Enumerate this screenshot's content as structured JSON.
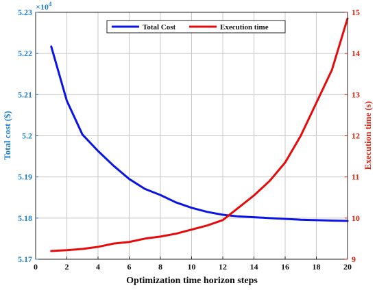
{
  "chart_data": {
    "type": "line",
    "xlabel": "Optimization time horizon steps",
    "ylabel_left": "Total cost ($)",
    "ylabel_right": "Execution time (s)",
    "xlim": [
      0,
      20
    ],
    "ylim_left": [
      5.17,
      5.23
    ],
    "ylim_right": [
      9,
      15
    ],
    "left_exponent": "×10",
    "left_exponent_power": "4",
    "x_ticks": [
      0,
      2,
      4,
      6,
      8,
      10,
      12,
      14,
      16,
      18,
      20
    ],
    "left_ticks": [
      "5.17",
      "5.18",
      "5.19",
      "5.2",
      "5.21",
      "5.22",
      "5.23"
    ],
    "right_ticks": [
      "9",
      "10",
      "11",
      "12",
      "13",
      "14",
      "15"
    ],
    "grid": true,
    "legend_position": "top-center",
    "series": [
      {
        "name": "Total Cost",
        "axis": "left",
        "color": "#0a14e6",
        "x": [
          1,
          2,
          3,
          4,
          5,
          6,
          7,
          8,
          9,
          10,
          11,
          12,
          13,
          14,
          15,
          16,
          17,
          18,
          19,
          20
        ],
        "values": [
          5.2217,
          5.2085,
          5.2003,
          5.1963,
          5.1927,
          5.1895,
          5.1871,
          5.1856,
          5.1838,
          5.1825,
          5.1815,
          5.1808,
          5.1804,
          5.1802,
          5.18,
          5.1798,
          5.1796,
          5.1795,
          5.1794,
          5.1793
        ]
      },
      {
        "name": "Execution time",
        "axis": "right",
        "color": "#e60a0a",
        "x": [
          1,
          2,
          3,
          4,
          5,
          6,
          7,
          8,
          9,
          10,
          11,
          12,
          13,
          14,
          15,
          16,
          17,
          18,
          19,
          20
        ],
        "values": [
          9.2,
          9.22,
          9.25,
          9.3,
          9.38,
          9.42,
          9.5,
          9.55,
          9.62,
          9.72,
          9.82,
          9.95,
          10.25,
          10.55,
          10.9,
          11.35,
          12.0,
          12.8,
          13.6,
          14.85
        ]
      }
    ]
  }
}
